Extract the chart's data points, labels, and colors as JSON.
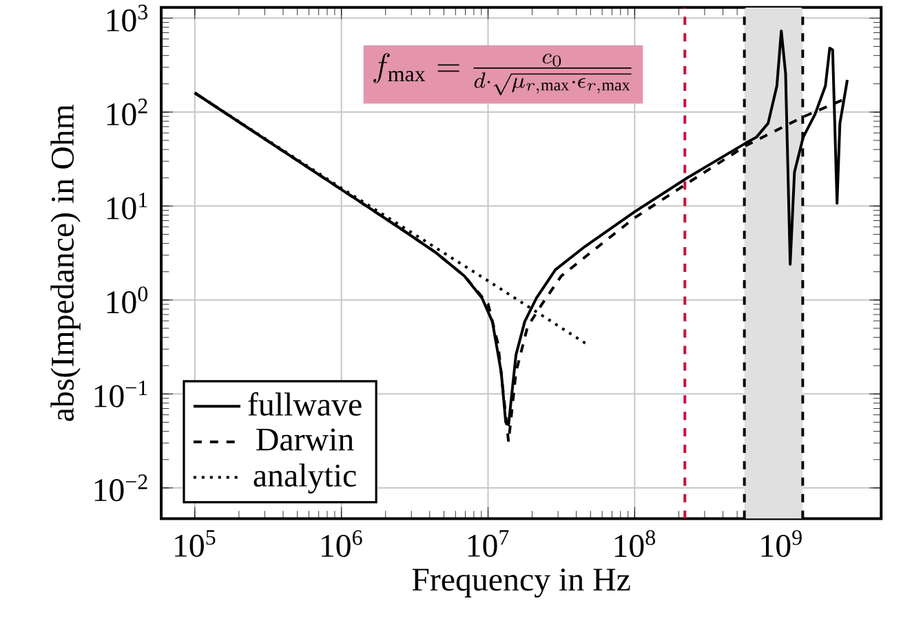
{
  "chart_data": {
    "type": "line",
    "xlabel": "Frequency in Hz",
    "ylabel": "abs(Impedance) in Ohm",
    "log": "xy",
    "grid": true,
    "legend": "bottom left",
    "xlim": [
      59000,
      4800000000
    ],
    "ylim": [
      0.0047,
      1300
    ],
    "xticks": [
      {
        "value": 100000,
        "label": "10$^{5}$"
      },
      {
        "value": 1000000,
        "label": "10$^{6}$"
      },
      {
        "value": 10000000,
        "label": "10$^{7}$"
      },
      {
        "value": 100000000,
        "label": "10$^{8}$"
      },
      {
        "value": 1000000000,
        "label": "10$^{9}$"
      }
    ],
    "yticks": [
      {
        "value": 0.01,
        "label": "10$^{−2}$"
      },
      {
        "value": 0.1,
        "label": "10$^{−1}$"
      },
      {
        "value": 1,
        "label": "10$^{0}$"
      },
      {
        "value": 10,
        "label": "10$^{1}$"
      },
      {
        "value": 100,
        "label": "10$^{2}$"
      },
      {
        "value": 1000,
        "label": "10$^{3}$"
      }
    ],
    "series": [
      {
        "name": "fullwave",
        "color": "#000000",
        "line_style": "solid",
        "x": [
          100000,
          1000000,
          2600000,
          4400000,
          6900000,
          9100000,
          10700000,
          12300000,
          13200000,
          13800000,
          15500000,
          17800000,
          21400000,
          28800000,
          45700000,
          100000000,
          229000000,
          575000000,
          676000000,
          813000000,
          933000000,
          1000000000,
          1070000000,
          1150000000,
          1230000000,
          1410000000,
          1700000000,
          2000000000,
          2140000000,
          2240000000,
          2400000000,
          2510000000,
          2820000000
        ],
        "values": [
          160,
          15,
          5.6,
          3.2,
          1.8,
          1.05,
          0.59,
          0.17,
          0.05,
          0.047,
          0.26,
          0.59,
          1.05,
          2.1,
          3.7,
          8.7,
          20,
          47,
          54,
          76,
          190,
          730,
          256,
          2.4,
          23,
          54,
          95,
          190,
          480,
          460,
          10.7,
          76,
          220
        ]
      },
      {
        "name": "Darwin",
        "color": "#000000",
        "line_style": "dashed",
        "x": [
          100000,
          1000000,
          2600000,
          4400000,
          6900000,
          10000000,
          11700000,
          13800000,
          15500000,
          18600000,
          23400000,
          31600000,
          50100000,
          100000000,
          229000000,
          575000000,
          1410000000,
          2630000000
        ],
        "values": [
          160,
          15,
          5.6,
          3.2,
          1.8,
          0.91,
          0.34,
          0.031,
          0.17,
          0.52,
          0.91,
          1.8,
          3.2,
          7.5,
          17.5,
          44,
          89,
          135
        ]
      },
      {
        "name": "analytic",
        "color": "#000000",
        "line_style": "dotted",
        "x": [
          100000,
          1000000,
          10000000,
          47000000
        ],
        "values": [
          160,
          15.5,
          1.6,
          0.34
        ]
      }
    ],
    "ref_lines": [
      {
        "axis": "x",
        "value": 220000000,
        "color": "#c8103e",
        "line_style": "dashed"
      },
      {
        "axis": "x",
        "value": 560000000,
        "color": "#000000",
        "line_style": "dashed"
      },
      {
        "axis": "x",
        "value": 1400000000,
        "color": "#000000",
        "line_style": "dashed"
      }
    ],
    "bands": [
      {
        "axis": "x",
        "from": 560000000,
        "to": 1400000000,
        "color": "#e0e0e0"
      }
    ],
    "annotations": [
      "f_{\\max} = \\frac{c_0}{d\\cdot\\sqrt{\\mu_{r,\\max}\\cdot\\epsilon_{r,\\max}}}"
    ]
  }
}
